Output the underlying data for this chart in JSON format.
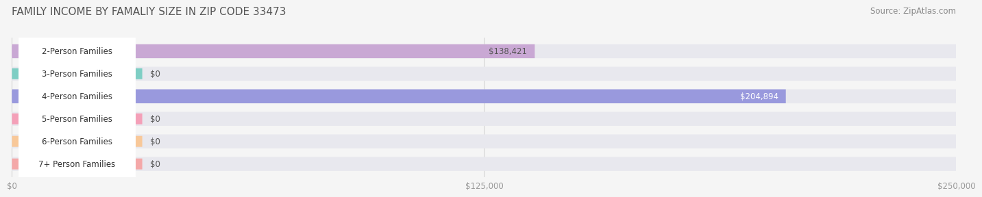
{
  "title": "FAMILY INCOME BY FAMALIY SIZE IN ZIP CODE 33473",
  "source_text": "Source: ZipAtlas.com",
  "categories": [
    "2-Person Families",
    "3-Person Families",
    "4-Person Families",
    "5-Person Families",
    "6-Person Families",
    "7+ Person Families"
  ],
  "values": [
    138421,
    0,
    204894,
    0,
    0,
    0
  ],
  "bar_colors": [
    "#c9a8d4",
    "#7ecec4",
    "#9999dd",
    "#f4a0b8",
    "#f8c899",
    "#f4a8a8"
  ],
  "value_labels": [
    "$138,421",
    "$0",
    "$204,894",
    "$0",
    "$0",
    "$0"
  ],
  "value_label_color_on_bar": [
    "#555555",
    "#555555",
    "#ffffff",
    "#555555",
    "#555555",
    "#555555"
  ],
  "xmax": 250000,
  "xtick_labels": [
    "$0",
    "$125,000",
    "$250,000"
  ],
  "background_color": "#f5f5f5",
  "bar_bg_color": "#e8e8ee",
  "title_fontsize": 11,
  "source_fontsize": 8.5,
  "label_fontsize": 8.5,
  "value_fontsize": 8.5
}
